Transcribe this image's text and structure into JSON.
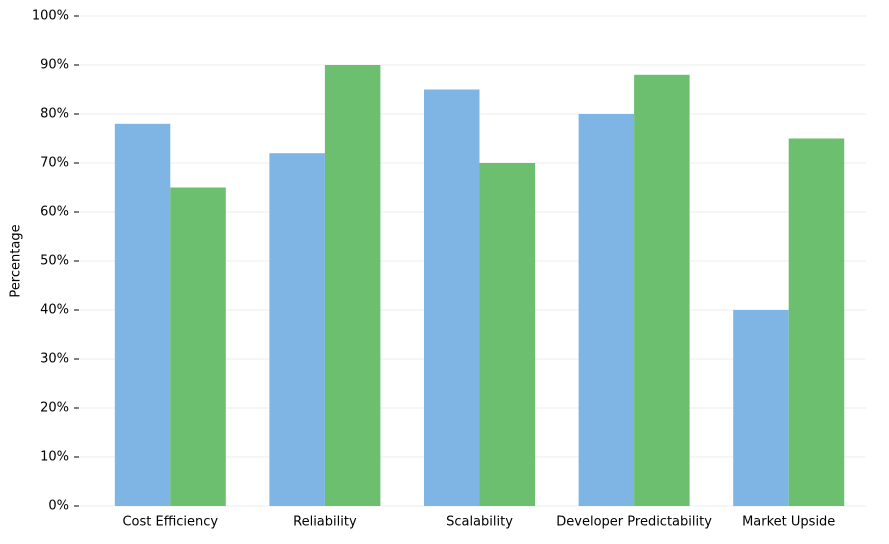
{
  "chart_data": {
    "type": "bar",
    "ylabel": "Percentage",
    "categories": [
      "Cost Efficiency",
      "Reliability",
      "Scalability",
      "Developer Predictability",
      "Market Upside"
    ],
    "series": [
      {
        "color": "#7fb5e5",
        "values": [
          78,
          72,
          85,
          80,
          40
        ]
      },
      {
        "color": "#6cbf6f",
        "values": [
          65,
          90,
          70,
          88,
          75
        ]
      }
    ],
    "ylim": [
      0,
      100
    ],
    "yticks": [
      {
        "value": 0,
        "label": "0%"
      },
      {
        "value": 10,
        "label": "10%"
      },
      {
        "value": 20,
        "label": "20%"
      },
      {
        "value": 30,
        "label": "30%"
      },
      {
        "value": 40,
        "label": "40%"
      },
      {
        "value": 50,
        "label": "50%"
      },
      {
        "value": 60,
        "label": "60%"
      },
      {
        "value": 70,
        "label": "70%"
      },
      {
        "value": 80,
        "label": "80%"
      },
      {
        "value": 90,
        "label": "90%"
      },
      {
        "value": 100,
        "label": "100%"
      }
    ],
    "grid": true
  }
}
